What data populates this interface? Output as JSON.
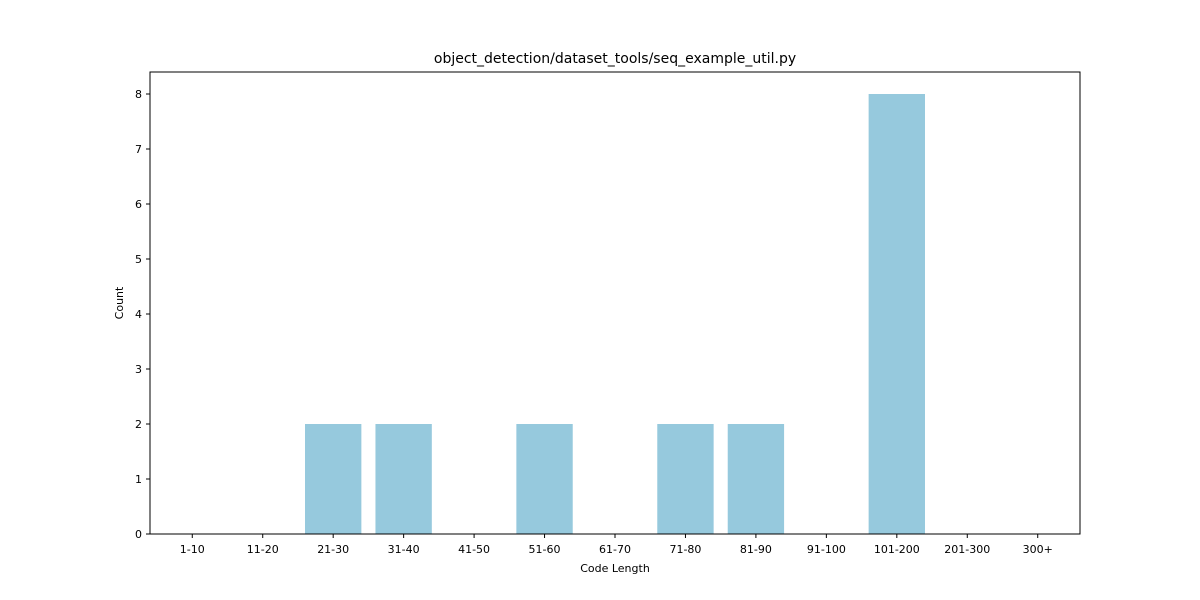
{
  "chart_data": {
    "type": "bar",
    "title": "object_detection/dataset_tools/seq_example_util.py",
    "xlabel": "Code Length",
    "ylabel": "Count",
    "categories": [
      "1-10",
      "11-20",
      "21-30",
      "31-40",
      "41-50",
      "51-60",
      "61-70",
      "71-80",
      "81-90",
      "91-100",
      "101-200",
      "201-300",
      "300+"
    ],
    "values": [
      0,
      0,
      2,
      2,
      0,
      2,
      0,
      2,
      2,
      0,
      8,
      0,
      0
    ],
    "ylim": [
      0,
      8.4
    ],
    "yticks": [
      0,
      1,
      2,
      3,
      4,
      5,
      6,
      7,
      8
    ],
    "bar_color": "#96c9dd",
    "grid": false,
    "legend": "none"
  }
}
